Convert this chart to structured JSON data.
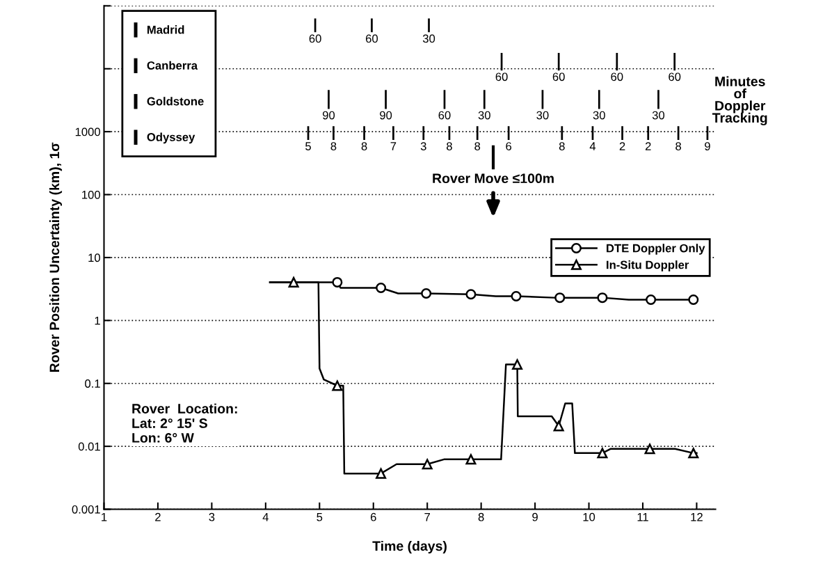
{
  "chart_data": {
    "type": "line",
    "xlabel": "Time (days)",
    "ylabel": "Rover Position Uncertainty (km), 1σ",
    "log": "y",
    "grid": "y",
    "legend": "center right",
    "xlim": [
      1,
      12.35
    ],
    "xticks": [
      1,
      2,
      3,
      4,
      5,
      6,
      7,
      8,
      9,
      10,
      11,
      12
    ],
    "ylim": [
      0.001,
      100000
    ],
    "yticks": [
      {
        "value": 0.001,
        "label": "0.001"
      },
      {
        "value": 0.01,
        "label": "0.01"
      },
      {
        "value": 0.1,
        "label": "0.1"
      },
      1,
      10,
      100,
      1000,
      {
        "value": 10000,
        "label": null
      },
      {
        "value": 100000,
        "label": null
      }
    ],
    "series": [
      {
        "color": "#000000",
        "x": [
          4.08,
          5.33,
          5.39,
          6.14,
          6.46,
          6.98,
          7.81,
          8.27,
          8.65,
          9.36,
          9.46,
          10.25,
          10.74,
          11.15,
          11.94,
          12.0
        ],
        "values": [
          4.05,
          4.05,
          3.3,
          3.3,
          2.69,
          2.69,
          2.6,
          2.43,
          2.43,
          2.3,
          2.3,
          2.3,
          2.14,
          2.14,
          2.14,
          2.14
        ]
      },
      {
        "name": "DTE Doppler Only",
        "type": "scatter",
        "color": "#000000",
        "marker": "circle",
        "x": [
          5.33,
          6.14,
          6.98,
          7.81,
          8.65,
          9.46,
          10.25,
          11.15,
          11.94
        ],
        "values": [
          4.05,
          3.3,
          2.69,
          2.6,
          2.43,
          2.3,
          2.3,
          2.14,
          2.14
        ]
      },
      {
        "color": "#000000",
        "x": [
          4.08,
          4.52,
          4.98,
          5.0,
          5.08,
          5.33,
          5.44,
          5.46,
          6.14,
          6.43,
          7.0,
          7.31,
          7.81,
          8.37,
          8.46,
          8.67,
          8.68,
          9.31,
          9.44,
          9.56,
          9.69,
          9.74,
          10.25,
          10.4,
          11.13,
          11.6,
          11.94,
          12.0
        ],
        "values": [
          4.05,
          4.05,
          4.05,
          0.173,
          0.115,
          0.092,
          0.092,
          0.0037,
          0.0037,
          0.0052,
          0.0052,
          0.0062,
          0.0062,
          0.0062,
          0.2,
          0.2,
          0.03,
          0.03,
          0.021,
          0.048,
          0.048,
          0.0078,
          0.0078,
          0.0091,
          0.0091,
          0.0091,
          0.0078,
          0.0078
        ]
      },
      {
        "name": "In-Situ Doppler",
        "type": "scatter",
        "color": "#000000",
        "marker": "triangle",
        "x": [
          4.52,
          5.33,
          6.14,
          7.0,
          7.81,
          8.67,
          9.44,
          10.25,
          11.13,
          11.94
        ],
        "values": [
          4.05,
          0.092,
          0.0037,
          0.0052,
          0.0062,
          0.2,
          0.021,
          0.0078,
          0.0091,
          0.0078
        ]
      },
      {
        "name": "Madrid",
        "type": "bar",
        "color": "#000000",
        "x": [
          4.92,
          5.97,
          7.03
        ],
        "base": [
          38000,
          38000,
          38000
        ],
        "values": [
          25000,
          25000,
          25000
        ]
      },
      {
        "name": "Canberra",
        "type": "bar",
        "color": "#000000",
        "x": [
          8.38,
          9.44,
          10.52,
          11.59
        ],
        "base": [
          9400,
          9400,
          9400,
          9400
        ],
        "values": [
          8400,
          8400,
          8400,
          8400
        ]
      },
      {
        "name": "Goldstone",
        "type": "bar",
        "color": "#000000",
        "x": [
          5.17,
          6.23,
          7.32,
          8.06,
          9.14,
          10.19,
          11.29
        ],
        "base": [
          2300,
          2300,
          2300,
          2300,
          2300,
          2300,
          2300
        ],
        "values": [
          2300,
          2300,
          2300,
          2300,
          2300,
          2300,
          2300
        ]
      },
      {
        "name": "Odyssey",
        "type": "bar",
        "color": "#000000",
        "x": [
          4.79,
          5.26,
          5.83,
          6.37,
          6.93,
          7.41,
          7.93,
          8.51,
          9.5,
          10.07,
          10.62,
          11.1,
          11.66,
          12.2
        ],
        "base": [
          740,
          740,
          740,
          740,
          740,
          740,
          740,
          740,
          740,
          740,
          740,
          740,
          740,
          740
        ],
        "values": [
          480,
          480,
          480,
          480,
          480,
          480,
          480,
          480,
          480,
          480,
          480,
          480,
          480,
          480
        ]
      }
    ],
    "annotations": [
      "Rover Move ≤100m",
      "Minutes\nof\nDoppler\nTracking",
      "Rover  Location:\nLat: 2° 15' S\nLon: 6° W",
      {
        "text": "60",
        "x": 4.92,
        "y": 38000
      },
      {
        "text": "60",
        "x": 5.97,
        "y": 38000
      },
      {
        "text": "30",
        "x": 7.03,
        "y": 38000
      },
      {
        "text": "60",
        "x": 8.38,
        "y": 9400
      },
      {
        "text": "60",
        "x": 9.44,
        "y": 9400
      },
      {
        "text": "60",
        "x": 10.52,
        "y": 9400
      },
      {
        "text": "60",
        "x": 11.59,
        "y": 9400
      },
      {
        "text": "90",
        "x": 5.17,
        "y": 2300
      },
      {
        "text": "90",
        "x": 6.23,
        "y": 2300
      },
      {
        "text": "60",
        "x": 7.32,
        "y": 2300
      },
      {
        "text": "30",
        "x": 8.06,
        "y": 2300
      },
      {
        "text": "30",
        "x": 9.14,
        "y": 2300
      },
      {
        "text": "30",
        "x": 10.19,
        "y": 2300
      },
      {
        "text": "30",
        "x": 11.29,
        "y": 2300
      },
      {
        "text": "5",
        "x": 4.79,
        "y": 740
      },
      {
        "text": "8",
        "x": 5.26,
        "y": 740
      },
      {
        "text": "8",
        "x": 5.83,
        "y": 740
      },
      {
        "text": "7",
        "x": 6.37,
        "y": 740
      },
      {
        "text": "3",
        "x": 6.93,
        "y": 740
      },
      {
        "text": "8",
        "x": 7.41,
        "y": 740
      },
      {
        "text": "8",
        "x": 7.93,
        "y": 740
      },
      {
        "text": "6",
        "x": 8.51,
        "y": 740
      },
      {
        "text": "8",
        "x": 9.5,
        "y": 740
      },
      {
        "text": "4",
        "x": 10.07,
        "y": 740
      },
      {
        "text": "2",
        "x": 10.62,
        "y": 740
      },
      {
        "text": "2",
        "x": 11.1,
        "y": 740
      },
      {
        "text": "8",
        "x": 11.66,
        "y": 740
      },
      {
        "text": "9",
        "x": 12.2,
        "y": 740
      }
    ]
  }
}
